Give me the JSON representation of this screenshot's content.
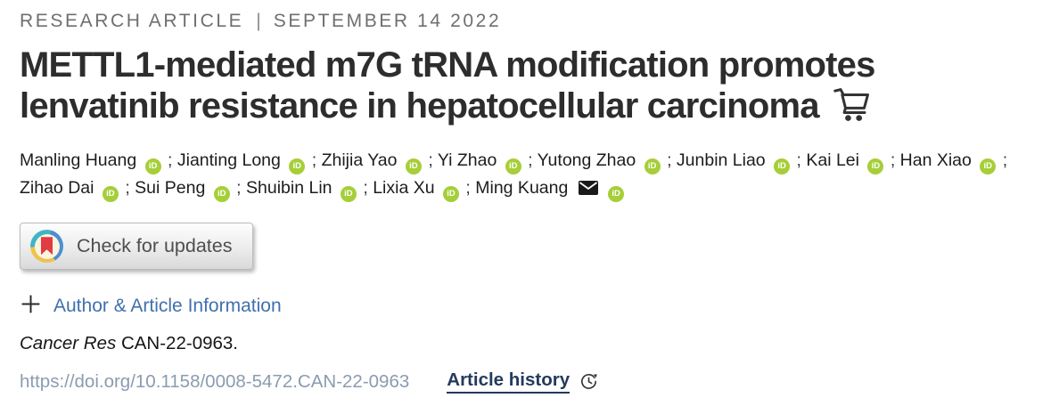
{
  "meta": {
    "kicker": "RESEARCH ARTICLE",
    "divider": "|",
    "date": "SEPTEMBER 14 2022"
  },
  "title": {
    "line1": "METTL1-mediated m7G tRNA modification promotes",
    "line2": "lenvatinib resistance in hepatocellular carcinoma"
  },
  "authors": {
    "separator": ";",
    "orcid_label": "iD",
    "list": [
      {
        "name": "Manling Huang",
        "orcid": true
      },
      {
        "name": "Jianting Long",
        "orcid": true
      },
      {
        "name": "Zhijia Yao",
        "orcid": true
      },
      {
        "name": "Yi Zhao",
        "orcid": true
      },
      {
        "name": "Yutong Zhao",
        "orcid": true
      },
      {
        "name": "Junbin Liao",
        "orcid": true
      },
      {
        "name": "Kai Lei",
        "orcid": true
      },
      {
        "name": "Han Xiao",
        "orcid": true
      },
      {
        "name": "Zihao Dai",
        "orcid": true
      },
      {
        "name": "Sui Peng",
        "orcid": true
      },
      {
        "name": "Shuibin Lin",
        "orcid": true
      },
      {
        "name": "Lixia Xu",
        "orcid": true
      },
      {
        "name": "Ming Kuang",
        "orcid": true,
        "email": true
      }
    ]
  },
  "crossmark": {
    "label": "Check for updates"
  },
  "author_info": {
    "label": "Author & Article Information"
  },
  "citation": {
    "journal": "Cancer Res",
    "id": "CAN-22-0963."
  },
  "links": {
    "doi": "https://doi.org/10.1158/0008-5472.CAN-22-0963",
    "article_history": "Article history"
  },
  "colors": {
    "orcid_green": "#a6ce39",
    "link_blue": "#4170ad",
    "doi_gray_blue": "#8b9cb0",
    "history_navy": "#243a5e",
    "title_ink": "#2d2d2d",
    "eyebrow_gray": "#6f6f6f",
    "crossmark_red": "#e03c41",
    "crossmark_blue": "#4c8fd0",
    "crossmark_teal": "#3eb5c6",
    "crossmark_yellow": "#efc24f"
  }
}
